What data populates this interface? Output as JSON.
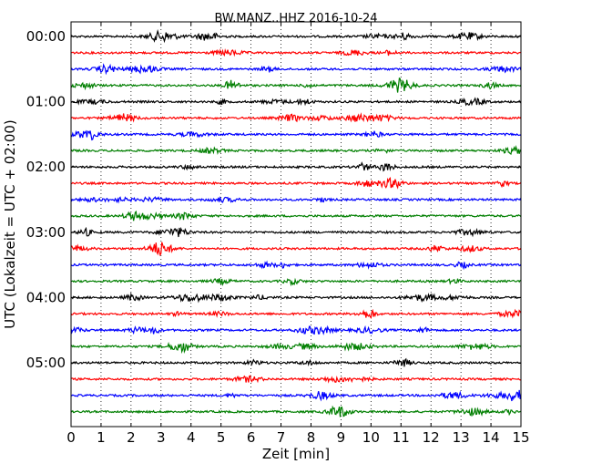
{
  "chart_data": {
    "type": "line",
    "subtype": "dayplot-seismogram",
    "title": "BW.MANZ..HHZ 2016-10-24",
    "xlabel": "Zeit  [min]",
    "ylabel": "UTC (Lokalzeit = UTC + 02:00)",
    "xlim": [
      0,
      15
    ],
    "x_ticks": [
      0,
      1,
      2,
      3,
      4,
      5,
      6,
      7,
      8,
      9,
      10,
      11,
      12,
      13,
      14,
      15
    ],
    "y_tick_labels": [
      "00:00",
      "01:00",
      "02:00",
      "03:00",
      "04:00",
      "05:00"
    ],
    "traces_per_hour": 4,
    "trace_count": 24,
    "trace_colors": [
      "#000000",
      "#ff0000",
      "#0000ff",
      "#007f00"
    ],
    "vertical_grid": true,
    "grid_style": "dotted"
  }
}
